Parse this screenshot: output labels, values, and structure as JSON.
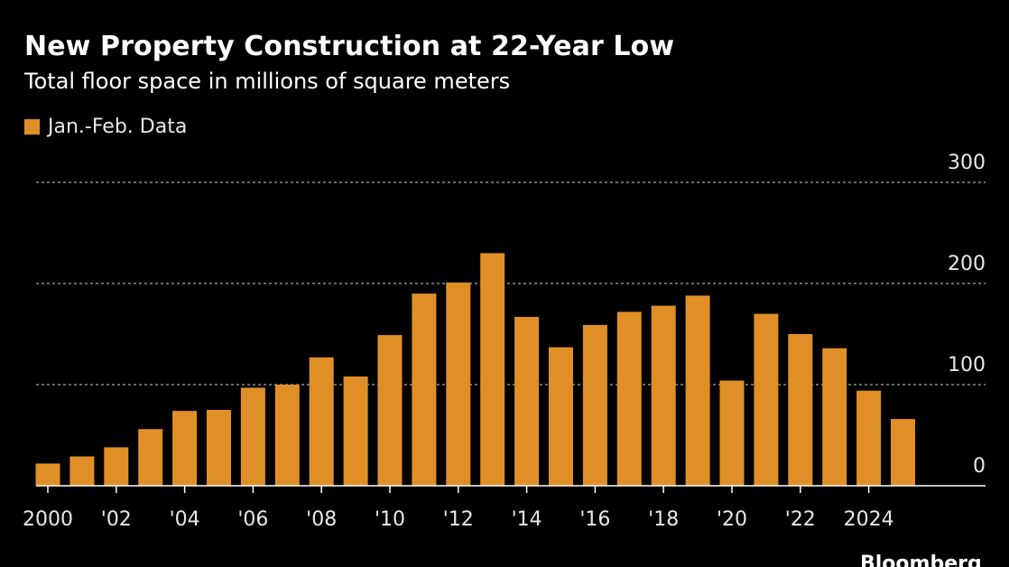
{
  "header": {
    "title": "New Property Construction at 22-Year Low",
    "subtitle": "Total floor space in millions of square meters"
  },
  "legend": {
    "label": "Jan.-Feb. Data"
  },
  "footer": {
    "source": "Bloomberg"
  },
  "colors": {
    "bar": "#e08f27",
    "background": "#000000",
    "grid": "#8a8a8a",
    "text": "#e8e8e8"
  },
  "chart_data": {
    "type": "bar",
    "title": "New Property Construction at 22-Year Low",
    "subtitle": "Total floor space in millions of square meters",
    "xlabel": "",
    "ylabel": "",
    "ylim": [
      0,
      300
    ],
    "yticks": [
      0,
      100,
      200,
      300
    ],
    "grid": true,
    "y_axis_side": "right",
    "legend_position": "top-left",
    "x_tick_labels": [
      "2000",
      "'02",
      "'04",
      "'06",
      "'08",
      "'10",
      "'12",
      "'14",
      "'16",
      "'18",
      "'20",
      "'22",
      "2024"
    ],
    "x_tick_years": [
      2000,
      2002,
      2004,
      2006,
      2008,
      2010,
      2012,
      2014,
      2016,
      2018,
      2020,
      2022,
      2024
    ],
    "series": [
      {
        "name": "Jan.-Feb. Data",
        "categories": [
          2000,
          2001,
          2002,
          2003,
          2004,
          2005,
          2006,
          2007,
          2008,
          2009,
          2010,
          2011,
          2012,
          2013,
          2014,
          2015,
          2016,
          2017,
          2018,
          2019,
          2020,
          2021,
          2022,
          2023,
          2024,
          2025
        ],
        "values": [
          22,
          29,
          38,
          56,
          74,
          75,
          97,
          100,
          127,
          108,
          149,
          190,
          201,
          230,
          167,
          137,
          159,
          172,
          178,
          188,
          104,
          170,
          150,
          136,
          94,
          66
        ]
      }
    ]
  }
}
